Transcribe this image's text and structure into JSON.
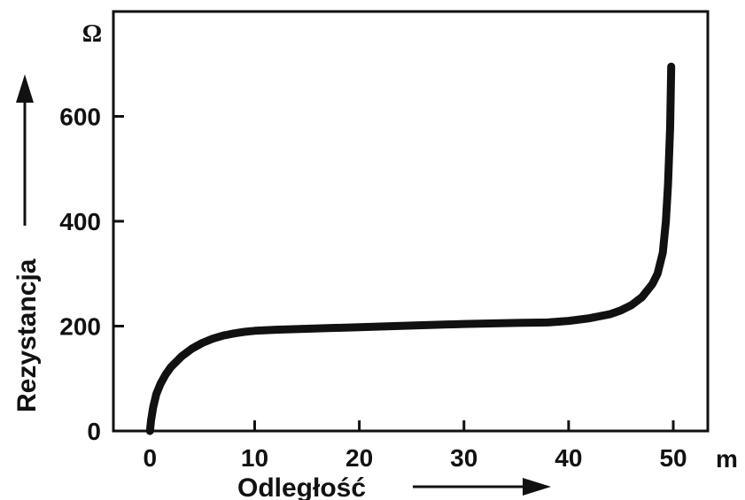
{
  "chart_data": {
    "type": "line",
    "xlabel": "Odległość",
    "ylabel": "Rezystancja",
    "x_unit": "m",
    "y_unit": "Ω",
    "xlim": [
      -3.5,
      53.3
    ],
    "ylim": [
      0,
      800
    ],
    "x_ticks": [
      0,
      10,
      20,
      30,
      40,
      50
    ],
    "x_tick_labels": [
      "0",
      "10",
      "20",
      "30",
      "40",
      "50"
    ],
    "y_ticks": [
      0,
      200,
      400,
      600
    ],
    "y_tick_labels": [
      "0",
      "200",
      "400",
      "600"
    ],
    "grid": false,
    "legend": "none",
    "line_color": "#111111",
    "series": [
      {
        "x": [
          0,
          0.1,
          0.3,
          0.6,
          1,
          1.5,
          2,
          3,
          4,
          5,
          6,
          7,
          8,
          9,
          10,
          12,
          15,
          20,
          25,
          30,
          35,
          38,
          40,
          42,
          44,
          45,
          46,
          47,
          48,
          48.5,
          49,
          49.3,
          49.5,
          49.7,
          49.8
        ],
        "y": [
          0,
          20,
          45,
          70,
          90,
          108,
          122,
          142,
          157,
          168,
          176,
          182,
          186,
          189,
          191,
          193,
          195,
          198,
          201,
          204,
          206,
          207,
          210,
          215,
          223,
          230,
          240,
          255,
          280,
          300,
          340,
          400,
          470,
          580,
          695
        ]
      }
    ]
  }
}
